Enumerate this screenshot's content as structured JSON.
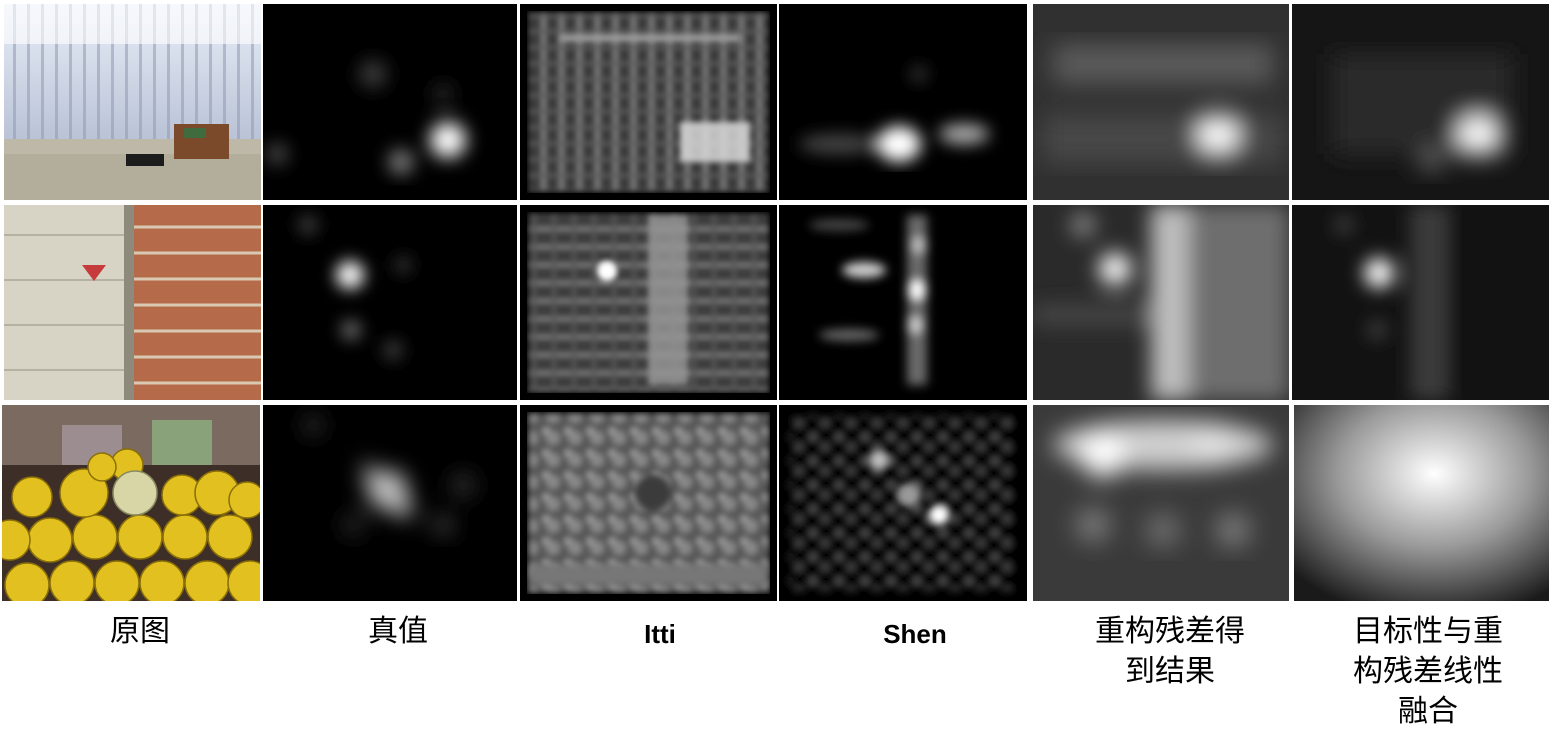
{
  "columns": [
    {
      "label": "原图"
    },
    {
      "label": "真值"
    },
    {
      "label": "Itti"
    },
    {
      "label": "Shen"
    },
    {
      "label": "重构残差得\n到结果"
    },
    {
      "label": "目标性与重\n构残差线性\n融合"
    }
  ],
  "rows": [
    {
      "scene": "curtain-room"
    },
    {
      "scene": "garage-door-brick-wall"
    },
    {
      "scene": "melon-display"
    }
  ]
}
